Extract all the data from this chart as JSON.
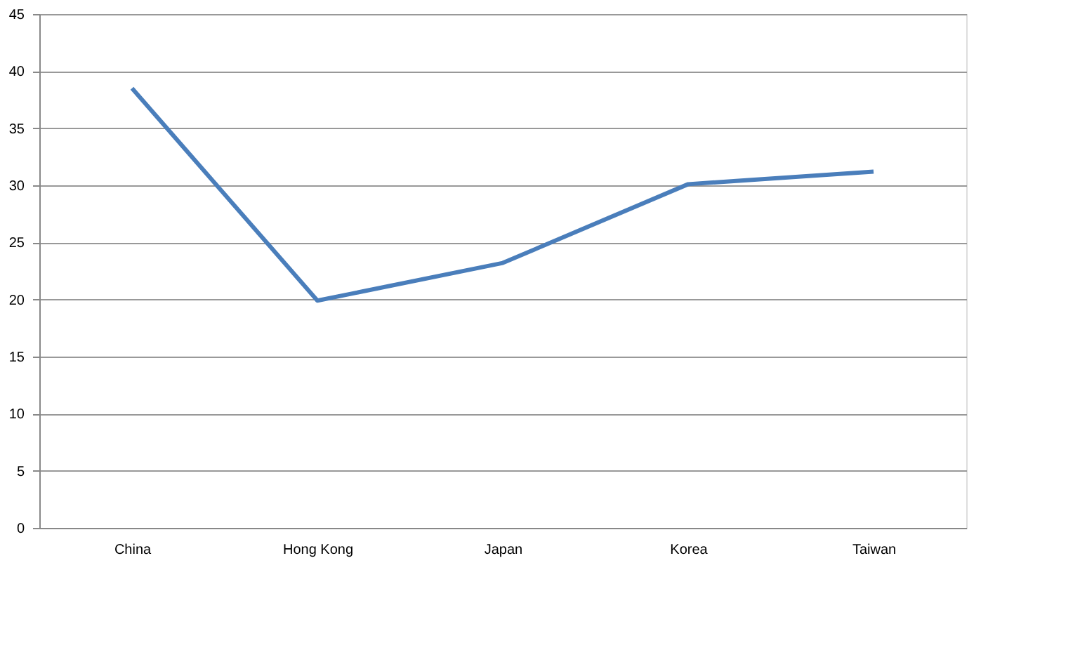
{
  "chart_data": {
    "type": "line",
    "categories": [
      "China",
      "Hong Kong",
      "Japan",
      "Korea",
      "Taiwan"
    ],
    "series": [
      {
        "color": "#4a7ebb",
        "values": [
          38.5,
          19.9,
          23.2,
          30.1,
          31.2
        ]
      }
    ],
    "ylim": [
      0,
      45
    ],
    "yticks": [
      0,
      5,
      10,
      15,
      20,
      25,
      30,
      35,
      40,
      45
    ],
    "grid": "y",
    "legend": false,
    "marker": "none",
    "line_style": "solid"
  }
}
